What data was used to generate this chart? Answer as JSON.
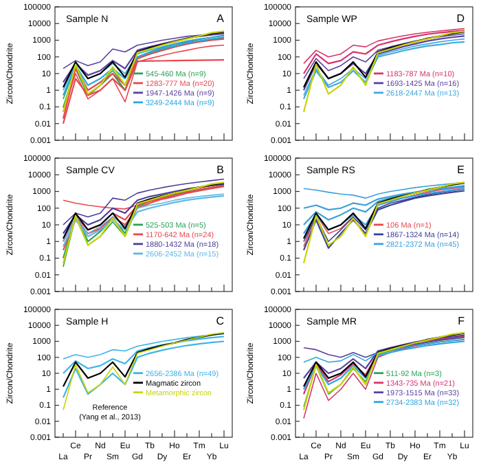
{
  "chart_data": [
    {
      "type": "line",
      "title": "Sample N",
      "annotations": [
        "A"
      ],
      "ylabel": "Zircon/Chondrite",
      "log": "y",
      "legend": "right",
      "tick_labels": "y",
      "ylim": [
        0.001,
        100000
      ],
      "yticks": [
        0.001,
        0.01,
        0.1,
        1,
        10,
        100,
        1000,
        10000,
        100000
      ],
      "categories": [
        null,
        null,
        null,
        null,
        null,
        null,
        null,
        null,
        null,
        null,
        null,
        null,
        null,
        null
      ],
      "series": [
        {
          "name": "545-460 Ma (n=9)",
          "color": "#2ca05a",
          "values": [
            0.3,
            30,
            1,
            3,
            15,
            2,
            100,
            200,
            350,
            550,
            800,
            1100,
            1500,
            2000
          ]
        },
        {
          "color": "#2ca05a",
          "values": [
            0.09,
            20,
            0.5,
            2,
            10,
            1,
            80,
            150,
            250,
            400,
            600,
            850,
            1100,
            1400
          ]
        },
        {
          "name": "1283-777 Ma (n=20)",
          "color": "#e8474f",
          "values": [
            0.05,
            10,
            0.3,
            1,
            5,
            0.2,
            50,
            80,
            120,
            180,
            250,
            350,
            450,
            500
          ]
        },
        {
          "color": "#e8474f",
          "values": [
            0.02,
            20,
            1,
            3,
            10,
            2,
            80,
            150,
            250,
            400,
            600,
            800,
            1000,
            1200
          ]
        },
        {
          "color": "#e8474f",
          "values": [
            0.01,
            5,
            0.5,
            1,
            5,
            1,
            55,
            57,
            58,
            60,
            62,
            63,
            65,
            66
          ]
        },
        {
          "name": "1947-1426 Ma (n=9)",
          "color": "#5b3fa0",
          "values": [
            20,
            60,
            30,
            50,
            300,
            200,
            500,
            700,
            1000,
            1300,
            1700,
            2000,
            2400,
            2800
          ]
        },
        {
          "color": "#5b3fa0",
          "values": [
            3,
            40,
            8,
            15,
            60,
            20,
            250,
            400,
            600,
            900,
            1300,
            1700,
            2100,
            2500
          ]
        },
        {
          "name": "3249-2444 Ma (n=9)",
          "color": "#2fa6e0",
          "values": [
            1,
            40,
            5,
            10,
            40,
            10,
            150,
            250,
            400,
            600,
            900,
            1200,
            1500,
            1800
          ]
        },
        {
          "color": "#2fa6e0",
          "values": [
            0.5,
            30,
            2,
            5,
            20,
            5,
            100,
            180,
            300,
            450,
            700,
            900,
            1200,
            1500
          ]
        },
        {
          "color": "#000000",
          "values": [
            1.5,
            50,
            5,
            10,
            50,
            6,
            200,
            350,
            550,
            800,
            1300,
            1800,
            2500,
            3200
          ]
        },
        {
          "color": "#c8d400",
          "values": [
            0.05,
            35,
            0.6,
            2,
            25,
            2,
            180,
            300,
            500,
            800,
            1200,
            1800,
            2800,
            3500
          ]
        }
      ]
    },
    {
      "type": "line",
      "title": "Sample WP",
      "annotations": [
        "D"
      ],
      "ylabel": "Zircon/Chondrite",
      "log": "y",
      "legend": "right",
      "tick_labels": "y",
      "ylim": [
        0.001,
        100000
      ],
      "yticks": [
        0.001,
        0.01,
        0.1,
        1,
        10,
        100,
        1000,
        10000,
        100000
      ],
      "categories": [
        null,
        null,
        null,
        null,
        null,
        null,
        null,
        null,
        null,
        null,
        null,
        null,
        null,
        null
      ],
      "series": [
        {
          "name": "1183-787 Ma (n=10)",
          "color": "#d6336c",
          "values": [
            40,
            250,
            100,
            150,
            500,
            400,
            900,
            1300,
            1800,
            2400,
            3000,
            3600,
            4200,
            5000
          ]
        },
        {
          "color": "#d6336c",
          "values": [
            10,
            150,
            40,
            60,
            200,
            150,
            500,
            800,
            1200,
            1700,
            2300,
            2800,
            3300,
            3800
          ]
        },
        {
          "name": "1693-1425 Ma (n=16)",
          "color": "#5b3fa0",
          "values": [
            5,
            80,
            15,
            30,
            100,
            50,
            250,
            400,
            600,
            900,
            1200,
            1600,
            2000,
            2400
          ]
        },
        {
          "color": "#5b3fa0",
          "values": [
            1,
            40,
            5,
            10,
            40,
            10,
            150,
            250,
            400,
            600,
            900,
            1200,
            1500,
            1800
          ]
        },
        {
          "name": "2618-2447 Ma (n=13)",
          "color": "#3fa9e0",
          "values": [
            0.5,
            20,
            2,
            5,
            20,
            5,
            120,
            200,
            300,
            450,
            600,
            800,
            1000,
            1200
          ]
        },
        {
          "color": "#3fa9e0",
          "values": [
            0.3,
            15,
            1.5,
            3,
            15,
            3,
            100,
            150,
            230,
            330,
            450,
            550,
            700,
            800
          ]
        },
        {
          "color": "#000000",
          "values": [
            1.5,
            50,
            5,
            10,
            50,
            6,
            200,
            350,
            550,
            800,
            1300,
            1800,
            2500,
            3200
          ]
        },
        {
          "color": "#c8d400",
          "values": [
            0.05,
            35,
            0.6,
            2,
            25,
            2,
            180,
            300,
            500,
            800,
            1200,
            1800,
            2800,
            3500
          ]
        }
      ]
    },
    {
      "type": "line",
      "title": "Sample CV",
      "annotations": [
        "B"
      ],
      "ylabel": "Zircon/Chondrite",
      "log": "y",
      "legend": "right",
      "tick_labels": "y",
      "ylim": [
        0.001,
        100000
      ],
      "yticks": [
        0.001,
        0.01,
        0.1,
        1,
        10,
        100,
        1000,
        10000,
        100000
      ],
      "categories": [
        null,
        null,
        null,
        null,
        null,
        null,
        null,
        null,
        null,
        null,
        null,
        null,
        null,
        null
      ],
      "series": [
        {
          "name": "525-503 Ma (n=5)",
          "color": "#2ca05a",
          "values": [
            0.03,
            30,
            0.6,
            2,
            15,
            2,
            120,
            250,
            400,
            600,
            900,
            1300,
            1700,
            2200
          ]
        },
        {
          "color": "#2ca05a",
          "values": [
            0.1,
            40,
            1,
            4,
            25,
            3,
            150,
            280,
            450,
            650,
            950,
            1300,
            1700,
            2100
          ]
        },
        {
          "name": "1170-642 Ma (n=24)",
          "color": "#e8474f",
          "values": [
            300,
            200,
            150,
            120,
            100,
            90,
            150,
            250,
            400,
            600,
            900,
            1300,
            1800,
            2500
          ]
        },
        {
          "color": "#e8474f",
          "values": [
            1,
            30,
            5,
            10,
            50,
            20,
            150,
            300,
            500,
            800,
            1200,
            1700,
            2300,
            3000
          ]
        },
        {
          "color": "#e8474f",
          "values": [
            0.3,
            20,
            3,
            6,
            30,
            10,
            100,
            200,
            350,
            500,
            800,
            1100,
            1500,
            2000
          ]
        },
        {
          "name": "1880-1432 Ma (n=18)",
          "color": "#4b3d9a",
          "values": [
            10,
            50,
            30,
            50,
            400,
            300,
            800,
            1200,
            1700,
            2300,
            3000,
            3700,
            4500,
            5500
          ]
        },
        {
          "color": "#4b3d9a",
          "values": [
            3,
            40,
            10,
            20,
            100,
            50,
            300,
            500,
            700,
            1000,
            1400,
            1800,
            2300,
            2800
          ]
        },
        {
          "name": "2606-2452 Ma (n=15)",
          "color": "#5fb8e6",
          "values": [
            1,
            30,
            3,
            8,
            30,
            8,
            100,
            150,
            200,
            300,
            400,
            500,
            600,
            700
          ]
        },
        {
          "color": "#5fb8e6",
          "values": [
            0.5,
            20,
            2,
            5,
            20,
            5,
            60,
            100,
            150,
            220,
            300,
            380,
            460,
            550
          ]
        },
        {
          "color": "#000000",
          "values": [
            1.5,
            50,
            5,
            10,
            50,
            6,
            200,
            350,
            550,
            800,
            1300,
            1800,
            2500,
            3200
          ]
        },
        {
          "color": "#c8d400",
          "values": [
            0.05,
            35,
            0.6,
            2,
            25,
            2,
            180,
            300,
            500,
            800,
            1200,
            1800,
            2800,
            3500
          ]
        }
      ]
    },
    {
      "type": "line",
      "title": "Sample RS",
      "annotations": [
        "E"
      ],
      "ylabel": "Zircon/Chondrite",
      "log": "y",
      "legend": "right",
      "tick_labels": "y",
      "ylim": [
        0.001,
        100000
      ],
      "yticks": [
        0.001,
        0.01,
        0.1,
        1,
        10,
        100,
        1000,
        10000,
        100000
      ],
      "categories": [
        null,
        null,
        null,
        null,
        null,
        null,
        null,
        null,
        null,
        null,
        null,
        null,
        null,
        null
      ],
      "series": [
        {
          "name": "106 Ma (n=1)",
          "color": "#e8474f",
          "values": [
            0.5,
            40,
            3,
            6,
            30,
            5,
            150,
            300,
            400,
            600,
            900,
            1200,
            1500,
            1800
          ]
        },
        {
          "name": "1867-1324 Ma (n=14)",
          "color": "#3b3f96",
          "values": [
            1,
            30,
            1,
            5,
            30,
            5,
            100,
            200,
            300,
            450,
            650,
            850,
            1100,
            1400
          ]
        },
        {
          "color": "#3b3f96",
          "values": [
            0.3,
            20,
            0.4,
            3,
            20,
            3,
            80,
            150,
            250,
            400,
            550,
            700,
            900,
            1100
          ]
        },
        {
          "name": "2821-2372 Ma (n=45)",
          "color": "#3aa0dc",
          "values": [
            1500,
            1200,
            900,
            700,
            600,
            400,
            700,
            1000,
            1300,
            1700,
            2100,
            2500,
            3000,
            3500
          ]
        },
        {
          "color": "#3aa0dc",
          "values": [
            100,
            150,
            80,
            100,
            200,
            150,
            350,
            500,
            700,
            900,
            1200,
            1500,
            1800,
            2200
          ]
        },
        {
          "color": "#3aa0dc",
          "values": [
            10,
            60,
            20,
            40,
            100,
            60,
            250,
            400,
            600,
            800,
            1100,
            1400,
            1700,
            2100
          ]
        },
        {
          "color": "#3aa0dc",
          "values": [
            3,
            40,
            5,
            10,
            40,
            10,
            150,
            250,
            400,
            550,
            750,
            950,
            1200,
            1500
          ]
        },
        {
          "color": "#000000",
          "values": [
            1.5,
            50,
            5,
            10,
            50,
            6,
            200,
            350,
            550,
            800,
            1300,
            1800,
            2500,
            3200
          ]
        },
        {
          "color": "#c8d400",
          "values": [
            0.05,
            35,
            0.6,
            2,
            25,
            2,
            180,
            300,
            500,
            800,
            1200,
            1800,
            2800,
            3500
          ]
        }
      ]
    },
    {
      "type": "line",
      "title": "Sample H",
      "annotations": [
        "C",
        "Reference",
        "(Yang et al., 2013)"
      ],
      "ylabel": "Zircon/Chondrite",
      "log": "y",
      "legend": "right",
      "ylim": [
        0.001,
        100000
      ],
      "yticks": [
        0.001,
        0.01,
        0.1,
        1,
        10,
        100,
        1000,
        10000,
        100000
      ],
      "categories": [
        "La",
        "Ce",
        "Pr",
        "Nd",
        "Sm",
        "Eu",
        "Gd",
        "Tb",
        "Dy",
        "Ho",
        "Er",
        "Tm",
        "Yb",
        "Lu"
      ],
      "series": [
        {
          "name": "2656-2386 Ma (n=49)",
          "color": "#3db4e8",
          "values": [
            80,
            150,
            100,
            150,
            300,
            250,
            500,
            700,
            1000,
            1300,
            1700,
            2100,
            2600,
            3000
          ]
        },
        {
          "color": "#3db4e8",
          "values": [
            10,
            60,
            20,
            30,
            80,
            40,
            250,
            400,
            600,
            800,
            1100,
            1400,
            1700,
            2000
          ]
        },
        {
          "color": "#3db4e8",
          "values": [
            0.3,
            20,
            0.5,
            2,
            10,
            2,
            100,
            180,
            280,
            400,
            550,
            700,
            850,
            1000
          ]
        },
        {
          "name": "Magmatic zircon",
          "color": "#000000",
          "values": [
            1.5,
            50,
            5,
            10,
            50,
            6,
            200,
            350,
            550,
            800,
            1300,
            1800,
            2500,
            3200
          ]
        },
        {
          "name": "Metamorphic zircon",
          "color": "#c8d400",
          "values": [
            0.05,
            35,
            0.6,
            2,
            25,
            2,
            180,
            300,
            500,
            800,
            1200,
            1800,
            2800,
            3500
          ]
        }
      ]
    },
    {
      "type": "line",
      "title": "Sample MR",
      "annotations": [
        "F"
      ],
      "ylabel": "Zircon/Chondrite",
      "log": "y",
      "legend": "right",
      "ylim": [
        0.001,
        100000
      ],
      "yticks": [
        0.001,
        0.01,
        0.1,
        1,
        10,
        100,
        1000,
        10000,
        100000
      ],
      "categories": [
        "La",
        "Ce",
        "Pr",
        "Nd",
        "Sm",
        "Eu",
        "Gd",
        "Tb",
        "Dy",
        "Ho",
        "Er",
        "Tm",
        "Yb",
        "Lu"
      ],
      "series": [
        {
          "name": "511-92 Ma (n=3)",
          "color": "#2ca05a",
          "values": [
            0.08,
            30,
            0.5,
            2,
            20,
            3,
            150,
            250,
            400,
            600,
            850,
            1100,
            1400,
            1700
          ]
        },
        {
          "name": "1343-735 Ma (n=21)",
          "color": "#d6336c",
          "values": [
            0.015,
            10,
            0.2,
            1,
            10,
            1,
            100,
            200,
            350,
            500,
            700,
            900,
            1100,
            1300
          ]
        },
        {
          "color": "#d6336c",
          "values": [
            0.5,
            40,
            3,
            8,
            40,
            8,
            200,
            350,
            550,
            800,
            1100,
            1400,
            1800,
            2200
          ]
        },
        {
          "name": "1973-1515 Ma (n=33)",
          "color": "#5b3fa0",
          "values": [
            400,
            300,
            150,
            100,
            200,
            100,
            200,
            300,
            450,
            650,
            900,
            1200,
            1500,
            1800
          ]
        },
        {
          "color": "#5b3fa0",
          "values": [
            5,
            50,
            10,
            20,
            80,
            20,
            250,
            400,
            600,
            900,
            1200,
            1600,
            2000,
            2400
          ]
        },
        {
          "name": "2734-2383 Ma (n=32)",
          "color": "#2fa6e0",
          "values": [
            50,
            100,
            50,
            60,
            150,
            60,
            200,
            300,
            400,
            550,
            700,
            900,
            1100,
            1300
          ]
        },
        {
          "color": "#2fa6e0",
          "values": [
            1,
            30,
            2,
            5,
            30,
            5,
            120,
            200,
            300,
            400,
            550,
            700,
            850,
            1000
          ]
        },
        {
          "color": "#000000",
          "values": [
            1.5,
            50,
            5,
            10,
            50,
            6,
            200,
            350,
            550,
            800,
            1300,
            1800,
            2500,
            3200
          ]
        },
        {
          "color": "#c8d400",
          "values": [
            0.05,
            35,
            0.6,
            2,
            25,
            2,
            180,
            300,
            500,
            800,
            1200,
            1800,
            2800,
            3500
          ]
        }
      ]
    }
  ]
}
